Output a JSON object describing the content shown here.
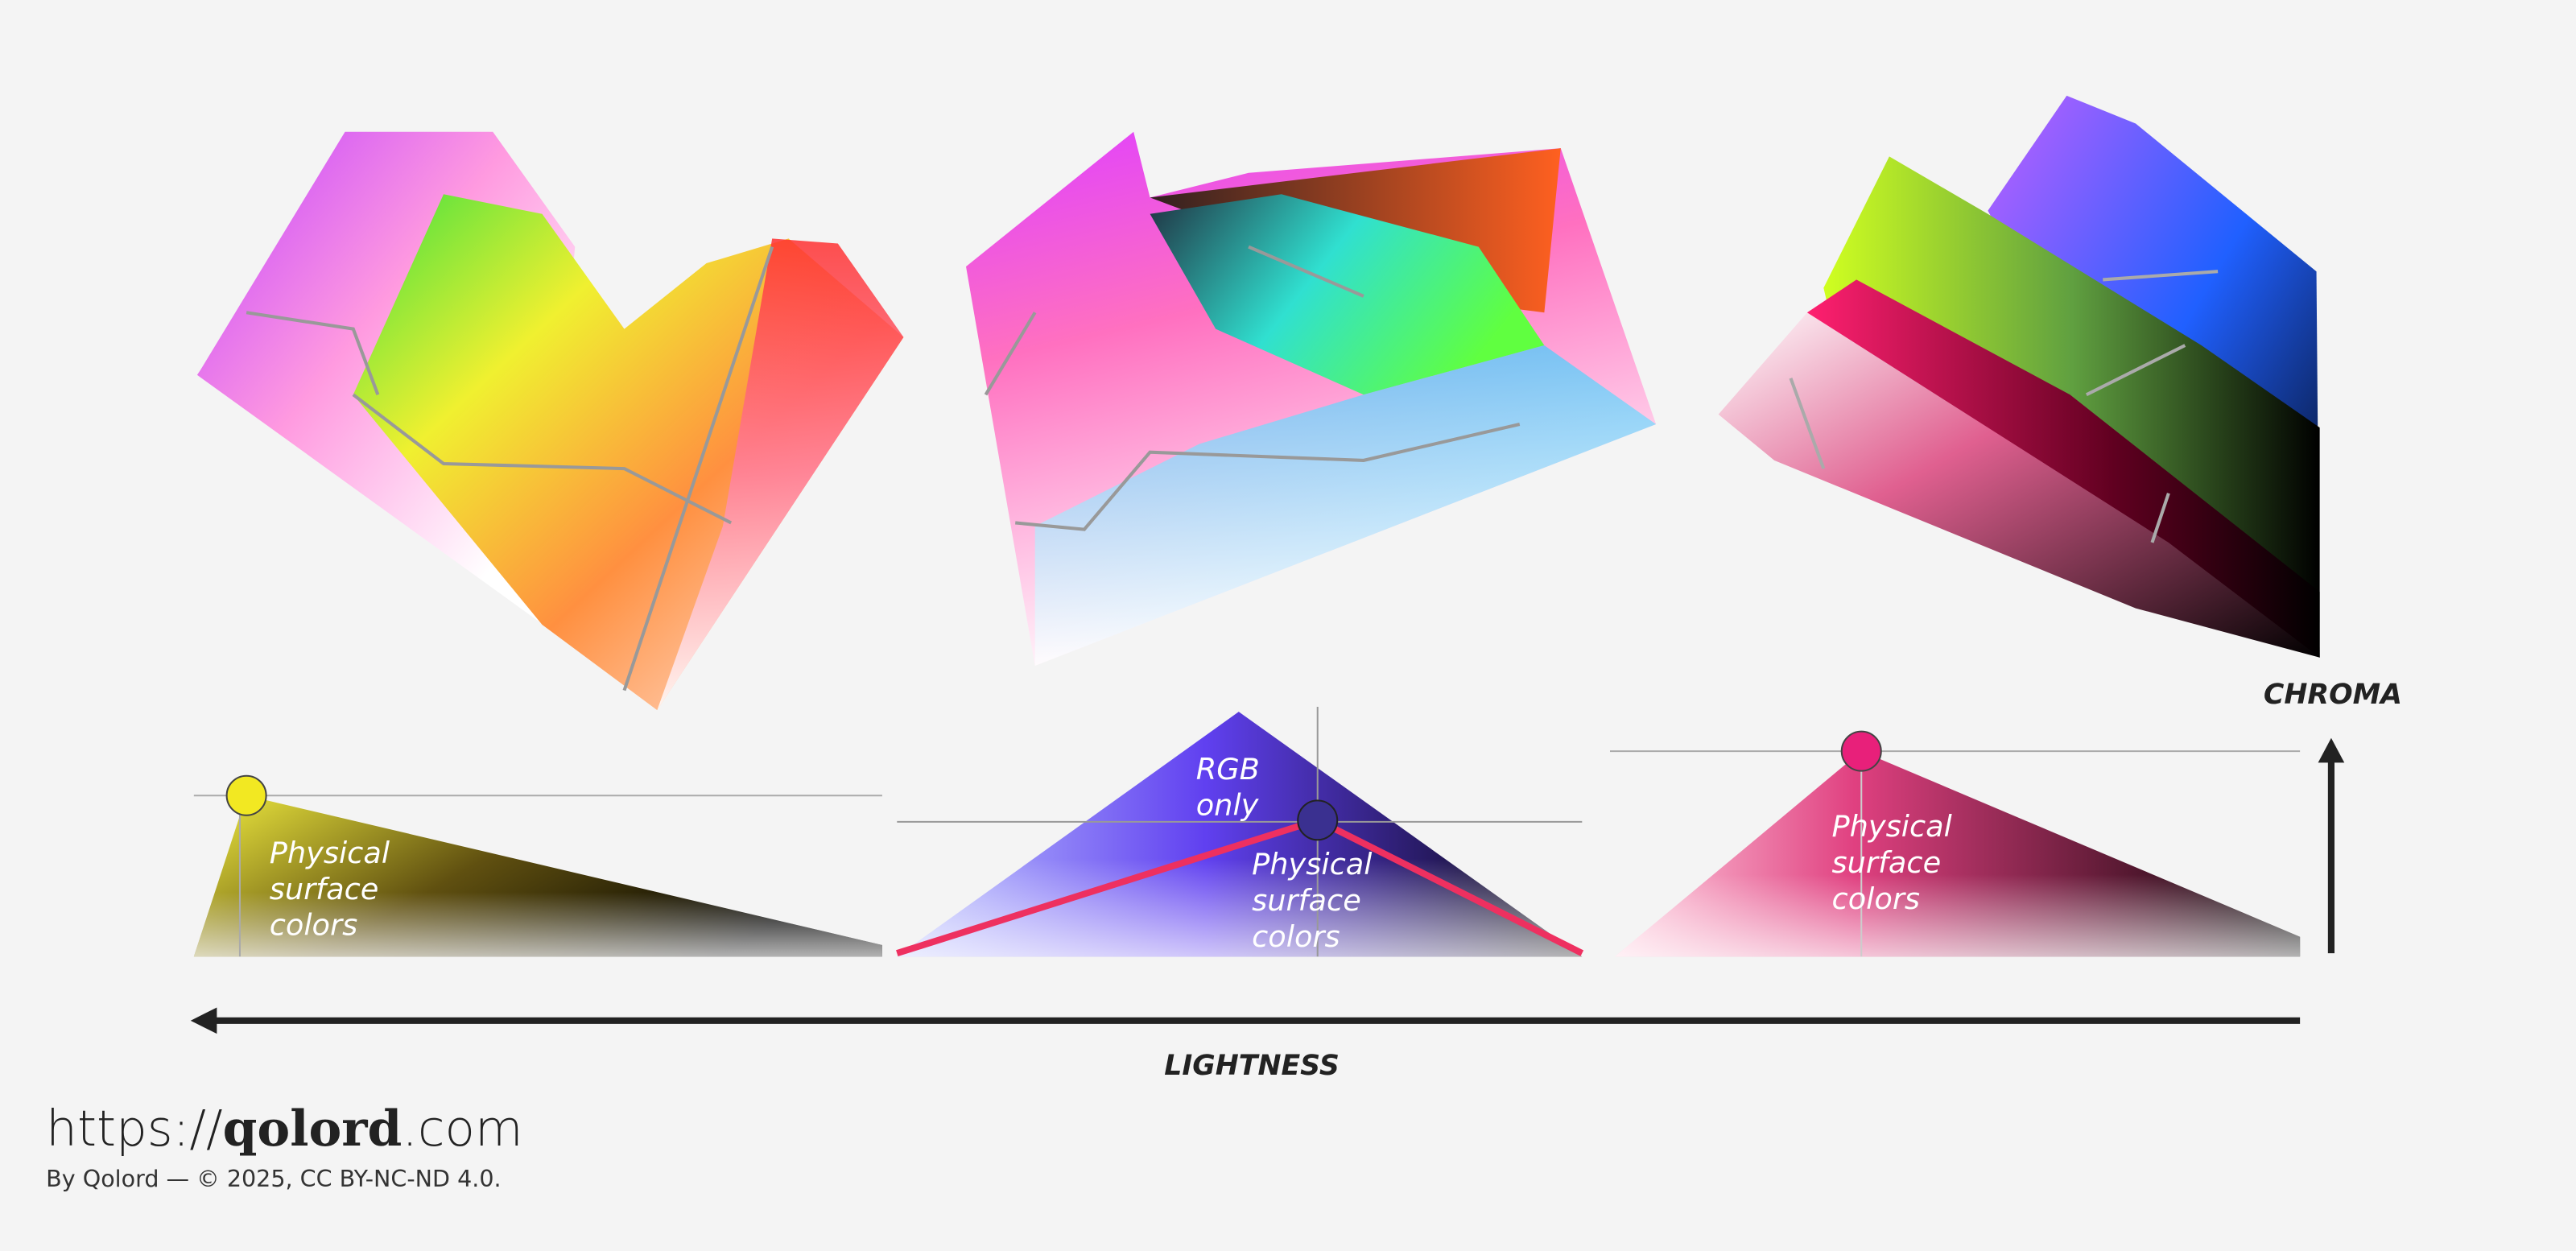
{
  "axes": {
    "chroma": "CHROMA",
    "lightness": "LIGHTNESS"
  },
  "panels": [
    {
      "label_lines": [
        "Physical",
        "surface",
        "colors"
      ]
    },
    {
      "rgb_lines": [
        "RGB",
        "only"
      ],
      "label_lines": [
        "Physical",
        "surface",
        "colors"
      ]
    },
    {
      "label_lines": [
        "Physical",
        "surface",
        "colors"
      ]
    }
  ],
  "footer": {
    "url_prefix": "https://",
    "url_brand": "qolord",
    "url_suffix": ".com",
    "credit": "By Qolord — © 2025, CC BY-NC-ND 4.0."
  }
}
